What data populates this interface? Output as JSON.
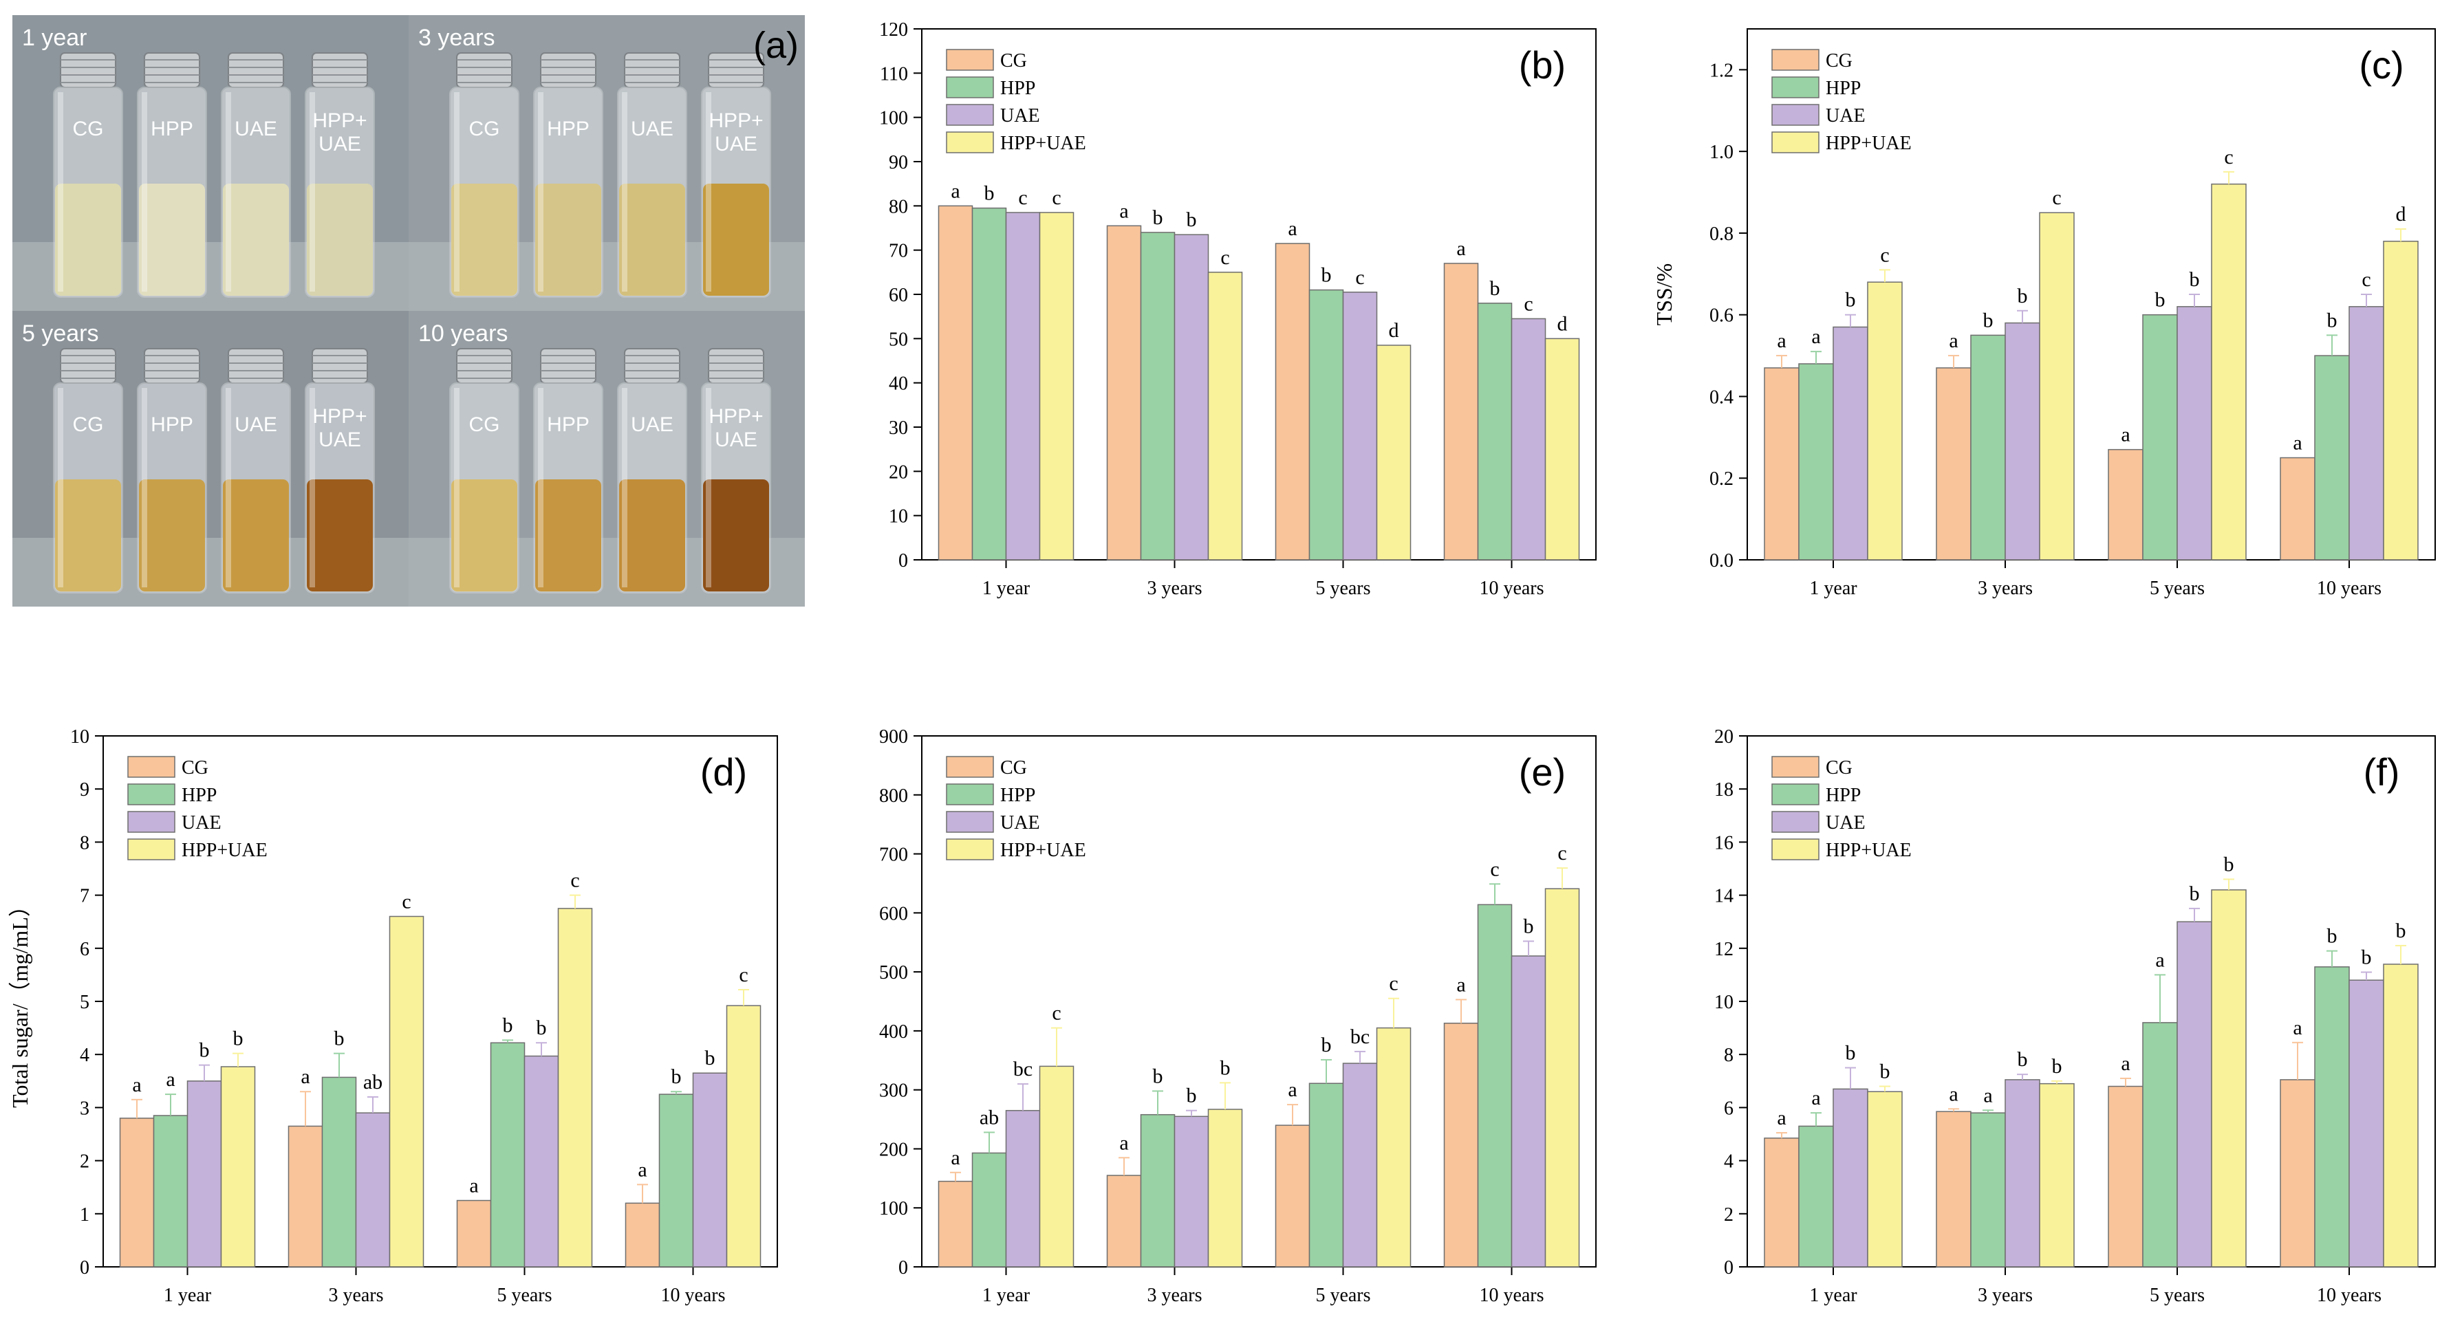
{
  "panel_a": {
    "letter": "(a)",
    "groups": [
      {
        "title": "1 year",
        "liquid": [
          "#dcd9b0",
          "#e1dec0",
          "#dedbb8",
          "#d8d4ad"
        ],
        "cap_labels": [
          "CG",
          "HPP",
          "UAE",
          "HPP+\nUAE"
        ]
      },
      {
        "title": "3 years",
        "liquid": [
          "#d9c98a",
          "#d6c588",
          "#d4c07d",
          "#c49a3c"
        ],
        "cap_labels": [
          "CG",
          "HPP",
          "UAE",
          "HPP+\nUAE"
        ]
      },
      {
        "title": "5 years",
        "liquid": [
          "#d4b767",
          "#c9a04a",
          "#c79a42",
          "#9c5c1c"
        ],
        "cap_labels": [
          "CG",
          "HPP",
          "UAE",
          "HPP+\nUAE"
        ]
      },
      {
        "title": "10 years",
        "liquid": [
          "#d7bb6c",
          "#c69640",
          "#c28d38",
          "#8e4f17"
        ],
        "cap_labels": [
          "CG",
          "HPP",
          "UAE",
          "HPP+\nUAE"
        ]
      }
    ]
  },
  "legend": [
    "CG",
    "HPP",
    "UAE",
    "HPP+UAE"
  ],
  "series_colors": [
    "#f9c49a",
    "#99d2a4",
    "#c5b2da",
    "#faf29b"
  ],
  "chart_data": [
    {
      "id": "b",
      "type": "bar",
      "letter": "(b)",
      "ylabel": "",
      "categories": [
        "1 year",
        "3 years",
        "5 years",
        "10 years"
      ],
      "ylim": [
        0,
        120
      ],
      "ticks": [
        0,
        10,
        20,
        30,
        40,
        50,
        60,
        70,
        80,
        90,
        100,
        110,
        120
      ],
      "series": [
        {
          "name": "CG",
          "values": [
            80,
            75.5,
            71.5,
            67
          ],
          "errors": [
            0,
            0,
            0,
            0
          ],
          "labels": [
            "a",
            "a",
            "a",
            "a"
          ]
        },
        {
          "name": "HPP",
          "values": [
            79.5,
            74,
            61,
            58
          ],
          "errors": [
            0,
            0,
            0,
            0
          ],
          "labels": [
            "b",
            "b",
            "b",
            "b"
          ]
        },
        {
          "name": "UAE",
          "values": [
            78.5,
            73.5,
            60.5,
            54.5
          ],
          "errors": [
            0,
            0,
            0,
            0
          ],
          "labels": [
            "c",
            "b",
            "c",
            "c"
          ]
        },
        {
          "name": "HPP+UAE",
          "values": [
            78.5,
            65,
            48.5,
            50
          ],
          "errors": [
            0,
            0,
            0,
            0
          ],
          "labels": [
            "c",
            "c",
            "d",
            "d"
          ]
        }
      ]
    },
    {
      "id": "c",
      "type": "bar",
      "letter": "(c)",
      "ylabel": "TSS/%",
      "categories": [
        "1 year",
        "3 years",
        "5 years",
        "10 years"
      ],
      "ylim": [
        0,
        1.3
      ],
      "ticks": [
        "0.0",
        "0.2",
        "0.4",
        "0.6",
        "0.8",
        "1.0",
        "1.2"
      ],
      "series": [
        {
          "name": "CG",
          "values": [
            0.47,
            0.47,
            0.27,
            0.25
          ],
          "errors": [
            0.03,
            0.03,
            0,
            0
          ],
          "labels": [
            "a",
            "a",
            "a",
            "a"
          ]
        },
        {
          "name": "HPP",
          "values": [
            0.48,
            0.55,
            0.6,
            0.5
          ],
          "errors": [
            0.03,
            0,
            0,
            0.05
          ],
          "labels": [
            "a",
            "b",
            "b",
            "b"
          ]
        },
        {
          "name": "UAE",
          "values": [
            0.57,
            0.58,
            0.62,
            0.62
          ],
          "errors": [
            0.03,
            0.03,
            0.03,
            0.03
          ],
          "labels": [
            "b",
            "b",
            "b",
            "c"
          ]
        },
        {
          "name": "HPP+UAE",
          "values": [
            0.68,
            0.85,
            0.92,
            0.78
          ],
          "errors": [
            0.03,
            0,
            0.03,
            0.03
          ],
          "labels": [
            "c",
            "c",
            "c",
            "d"
          ]
        }
      ]
    },
    {
      "id": "d",
      "type": "bar",
      "letter": "(d)",
      "ylabel": "Total sugar/（mg/mL）",
      "categories": [
        "1 year",
        "3 years",
        "5 years",
        "10 years"
      ],
      "ylim": [
        0,
        10
      ],
      "ticks": [
        0,
        1,
        2,
        3,
        4,
        5,
        6,
        7,
        8,
        9,
        10
      ],
      "series": [
        {
          "name": "CG",
          "values": [
            2.8,
            2.65,
            1.25,
            1.2
          ],
          "errors": [
            0.35,
            0.65,
            0,
            0.35
          ],
          "labels": [
            "a",
            "a",
            "a",
            "a"
          ]
        },
        {
          "name": "HPP",
          "values": [
            2.85,
            3.57,
            4.22,
            3.25
          ],
          "errors": [
            0.4,
            0.45,
            0.05,
            0.05
          ],
          "labels": [
            "a",
            "b",
            "b",
            "b"
          ]
        },
        {
          "name": "UAE",
          "values": [
            3.5,
            2.9,
            3.97,
            3.65
          ],
          "errors": [
            0.3,
            0.3,
            0.25,
            0
          ],
          "labels": [
            "b",
            "ab",
            "b",
            "b"
          ]
        },
        {
          "name": "HPP+UAE",
          "values": [
            3.77,
            6.6,
            6.75,
            4.92
          ],
          "errors": [
            0.25,
            0,
            0.25,
            0.3
          ],
          "labels": [
            "b",
            "c",
            "c",
            "c"
          ]
        }
      ]
    },
    {
      "id": "e",
      "type": "bar",
      "letter": "(e)",
      "ylabel": "",
      "categories": [
        "1 year",
        "3 years",
        "5 years",
        "10 years"
      ],
      "ylim": [
        0,
        900
      ],
      "ticks": [
        0,
        100,
        200,
        300,
        400,
        500,
        600,
        700,
        800,
        900
      ],
      "series": [
        {
          "name": "CG",
          "values": [
            145,
            155,
            240,
            413
          ],
          "errors": [
            15,
            30,
            35,
            40
          ],
          "labels": [
            "a",
            "a",
            "a",
            "a"
          ]
        },
        {
          "name": "HPP",
          "values": [
            193,
            258,
            311,
            614
          ],
          "errors": [
            35,
            40,
            40,
            35
          ],
          "labels": [
            "ab",
            "b",
            "b",
            "c"
          ]
        },
        {
          "name": "UAE",
          "values": [
            265,
            255,
            345,
            527
          ],
          "errors": [
            45,
            10,
            20,
            25
          ],
          "labels": [
            "bc",
            "b",
            "bc",
            "b"
          ]
        },
        {
          "name": "HPP+UAE",
          "values": [
            340,
            267,
            405,
            641
          ],
          "errors": [
            65,
            45,
            50,
            35
          ],
          "labels": [
            "c",
            "b",
            "c",
            "c"
          ]
        }
      ]
    },
    {
      "id": "f",
      "type": "bar",
      "letter": "(f)",
      "ylabel": "",
      "categories": [
        "1 year",
        "3 years",
        "5 years",
        "10 years"
      ],
      "ylim": [
        0,
        20
      ],
      "ticks": [
        0,
        2,
        4,
        6,
        8,
        10,
        12,
        14,
        16,
        18,
        20
      ],
      "series": [
        {
          "name": "CG",
          "values": [
            4.85,
            5.85,
            6.8,
            7.05
          ],
          "errors": [
            0.2,
            0.1,
            0.3,
            1.4
          ],
          "labels": [
            "a",
            "a",
            "a",
            "a"
          ]
        },
        {
          "name": "HPP",
          "values": [
            5.3,
            5.8,
            9.2,
            11.3
          ],
          "errors": [
            0.5,
            0.1,
            1.8,
            0.6
          ],
          "labels": [
            "a",
            "a",
            "a",
            "b"
          ]
        },
        {
          "name": "UAE",
          "values": [
            6.7,
            7.05,
            13,
            10.8
          ],
          "errors": [
            0.8,
            0.2,
            0.5,
            0.3
          ],
          "labels": [
            "b",
            "b",
            "b",
            "b"
          ]
        },
        {
          "name": "HPP+UAE",
          "values": [
            6.6,
            6.9,
            14.2,
            11.4
          ],
          "errors": [
            0.2,
            0.1,
            0.4,
            0.7
          ],
          "labels": [
            "b",
            "b",
            "b",
            "b"
          ]
        }
      ]
    }
  ]
}
